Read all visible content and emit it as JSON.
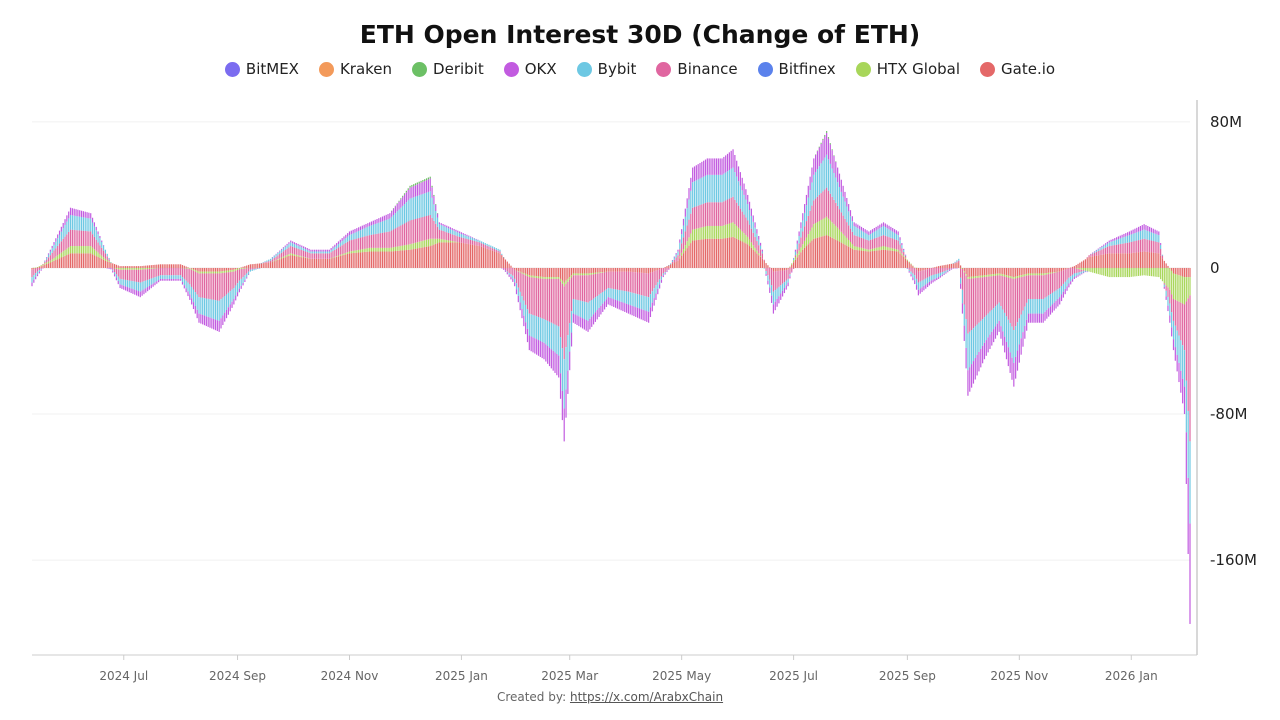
{
  "chart_data": {
    "type": "bar",
    "stacked": true,
    "title": "ETH Open Interest 30D (Change of ETH)",
    "legend_position": "top",
    "y_axis_position": "right",
    "ylim": [
      -212,
      92
    ],
    "y_ticks": [
      80,
      0,
      -80,
      -160
    ],
    "y_tick_labels": [
      "80M",
      "0",
      "-80M",
      "-160M"
    ],
    "grid": true,
    "x_tick_labels": [
      "2024 Jul",
      "2024 Sep",
      "2024 Nov",
      "2025 Jan",
      "2025 Mar",
      "2025 May",
      "2025 Jul",
      "2025 Sep",
      "2025 Nov",
      "2026 Jan"
    ],
    "x_tick_dates": [
      "2024-07-01",
      "2024-09-01",
      "2024-11-01",
      "2025-01-01",
      "2025-03-01",
      "2025-05-01",
      "2025-07-01",
      "2025-09-01",
      "2025-11-01",
      "2026-01-01"
    ],
    "xlim": [
      "2024-05-12",
      "2026-02-02"
    ],
    "unit": "M ETH",
    "dates": [
      "2024-05-12",
      "2024-05-22",
      "2024-06-02",
      "2024-06-13",
      "2024-06-21",
      "2024-06-29",
      "2024-07-10",
      "2024-07-21",
      "2024-08-01",
      "2024-08-11",
      "2024-08-22",
      "2024-08-30",
      "2024-09-08",
      "2024-09-19",
      "2024-09-30",
      "2024-10-11",
      "2024-10-21",
      "2024-11-01",
      "2024-11-12",
      "2024-11-23",
      "2024-12-04",
      "2024-12-15",
      "2024-12-20",
      "2024-12-31",
      "2025-01-11",
      "2025-01-22",
      "2025-01-30",
      "2025-02-07",
      "2025-02-15",
      "2025-02-23",
      "2025-02-26",
      "2025-03-03",
      "2025-03-11",
      "2025-03-22",
      "2025-04-02",
      "2025-04-13",
      "2025-04-21",
      "2025-04-29",
      "2025-05-07",
      "2025-05-15",
      "2025-05-23",
      "2025-05-29",
      "2025-06-06",
      "2025-06-14",
      "2025-06-20",
      "2025-06-28",
      "2025-07-06",
      "2025-07-12",
      "2025-07-19",
      "2025-07-25",
      "2025-08-03",
      "2025-08-11",
      "2025-08-19",
      "2025-08-27",
      "2025-09-07",
      "2025-09-18",
      "2025-09-29",
      "2025-10-04",
      "2025-10-13",
      "2025-10-21",
      "2025-10-29",
      "2025-11-06",
      "2025-11-14",
      "2025-11-23",
      "2025-12-01",
      "2025-12-09",
      "2025-12-20",
      "2025-12-31",
      "2026-01-08",
      "2026-01-16",
      "2026-01-24",
      "2026-01-30",
      "2026-02-02"
    ],
    "series": [
      {
        "name": "Gate.io",
        "color": "#e46868",
        "values": [
          -1,
          3,
          8,
          8,
          4,
          1,
          1,
          2,
          2,
          -2,
          -2,
          -1,
          2,
          3,
          7,
          5,
          5,
          8,
          9,
          9,
          10,
          12,
          14,
          14,
          12,
          8,
          -1,
          -4,
          -5,
          -5,
          -8,
          -3,
          -3,
          -2,
          -2,
          -3,
          0,
          4,
          15,
          16,
          16,
          17,
          13,
          5,
          -2,
          -1,
          10,
          16,
          18,
          15,
          10,
          9,
          10,
          9,
          -2,
          1,
          3,
          -5,
          -4,
          -3,
          -5,
          -3,
          -3,
          -2,
          1,
          6,
          8,
          8,
          9,
          8,
          -3,
          -5,
          -5
        ]
      },
      {
        "name": "HTX Global",
        "color": "#a8d65a",
        "values": [
          0,
          1,
          4,
          4,
          1,
          -1,
          -1,
          0,
          0,
          -1,
          -1,
          -1,
          0,
          0,
          1,
          0,
          0,
          1,
          2,
          2,
          3,
          4,
          2,
          0,
          0,
          0,
          0,
          -1,
          -1,
          -1,
          -2,
          -1,
          -1,
          0,
          0,
          0,
          0,
          0,
          6,
          7,
          7,
          8,
          4,
          0,
          0,
          0,
          3,
          8,
          10,
          7,
          2,
          1,
          2,
          1,
          0,
          0,
          0,
          -1,
          -1,
          -1,
          -1,
          -1,
          -1,
          0,
          0,
          -2,
          -5,
          -5,
          -4,
          -5,
          -14,
          -15,
          -10
        ]
      },
      {
        "name": "Binance",
        "color": "#e066a0",
        "values": [
          -4,
          3,
          9,
          8,
          3,
          -5,
          -7,
          -4,
          -4,
          -13,
          -15,
          -9,
          -1,
          1,
          4,
          3,
          3,
          6,
          7,
          9,
          13,
          13,
          5,
          3,
          2,
          1,
          -5,
          -20,
          -22,
          -26,
          -40,
          -13,
          -15,
          -9,
          -11,
          -13,
          -3,
          3,
          12,
          13,
          13,
          14,
          9,
          3,
          -11,
          -5,
          7,
          13,
          16,
          12,
          6,
          5,
          6,
          5,
          -6,
          -3,
          1,
          -30,
          -22,
          -15,
          -28,
          -13,
          -13,
          -9,
          -3,
          1,
          4,
          6,
          7,
          6,
          -12,
          -25,
          -80
        ]
      },
      {
        "name": "Bybit",
        "color": "#6dc8e3",
        "values": [
          -3,
          2,
          8,
          7,
          2,
          -3,
          -5,
          -2,
          -2,
          -9,
          -11,
          -6,
          -1,
          1,
          2,
          1,
          1,
          3,
          5,
          7,
          12,
          13,
          3,
          2,
          1,
          1,
          -2,
          -12,
          -13,
          -16,
          -27,
          -8,
          -10,
          -5,
          -7,
          -8,
          -1,
          2,
          14,
          15,
          15,
          16,
          9,
          1,
          -7,
          -2,
          6,
          14,
          18,
          13,
          5,
          3,
          5,
          3,
          -4,
          -2,
          1,
          -20,
          -14,
          -10,
          -18,
          -8,
          -8,
          -5,
          -2,
          0,
          2,
          4,
          5,
          4,
          -10,
          -20,
          -45
        ]
      },
      {
        "name": "OKX",
        "color": "#c25be0",
        "values": [
          -2,
          1,
          4,
          3,
          0,
          -2,
          -3,
          -1,
          -1,
          -5,
          -6,
          -3,
          0,
          0,
          1,
          1,
          1,
          2,
          2,
          3,
          6,
          7,
          1,
          1,
          0,
          0,
          -2,
          -8,
          -9,
          -12,
          -18,
          -5,
          -6,
          -4,
          -5,
          -6,
          -1,
          1,
          8,
          9,
          9,
          10,
          5,
          1,
          -5,
          -2,
          4,
          9,
          12,
          8,
          2,
          2,
          2,
          2,
          -3,
          -1,
          0,
          -14,
          -9,
          -6,
          -13,
          -5,
          -5,
          -4,
          -1,
          0,
          1,
          2,
          3,
          2,
          -6,
          -15,
          -55
        ]
      },
      {
        "name": "Deribit",
        "color": "#6cc065",
        "values": [
          0,
          0,
          0,
          0,
          0,
          0,
          0,
          0,
          0,
          0,
          0,
          0,
          0,
          0,
          0,
          0,
          0,
          0,
          0,
          0,
          1,
          1,
          0,
          0,
          0,
          0,
          0,
          0,
          0,
          0,
          0,
          0,
          0,
          0,
          0,
          0,
          0,
          0,
          0,
          0,
          0,
          0,
          0,
          0,
          0,
          0,
          0,
          0,
          1,
          0,
          0,
          0,
          0,
          0,
          0,
          0,
          0,
          0,
          0,
          0,
          0,
          0,
          0,
          0,
          0,
          0,
          0,
          0,
          0,
          0,
          0,
          0,
          0
        ]
      },
      {
        "name": "BitMEX",
        "color": "#7b6cf0",
        "legend_only": true
      },
      {
        "name": "Kraken",
        "color": "#f39a5a",
        "legend_only": true
      },
      {
        "name": "Bitfinex",
        "color": "#5b82ec",
        "legend_only": true
      }
    ]
  },
  "legend": [
    {
      "label": "BitMEX",
      "color": "#7b6cf0"
    },
    {
      "label": "Kraken",
      "color": "#f39a5a"
    },
    {
      "label": "Deribit",
      "color": "#6cc065"
    },
    {
      "label": "OKX",
      "color": "#c25be0"
    },
    {
      "label": "Bybit",
      "color": "#6dc8e3"
    },
    {
      "label": "Binance",
      "color": "#e066a0"
    },
    {
      "label": "Bitfinex",
      "color": "#5b82ec"
    },
    {
      "label": "HTX Global",
      "color": "#a8d65a"
    },
    {
      "label": "Gate.io",
      "color": "#e46868"
    }
  ],
  "footer": {
    "prefix": "Created by:",
    "link": "https://x.com/ArabxChain"
  }
}
